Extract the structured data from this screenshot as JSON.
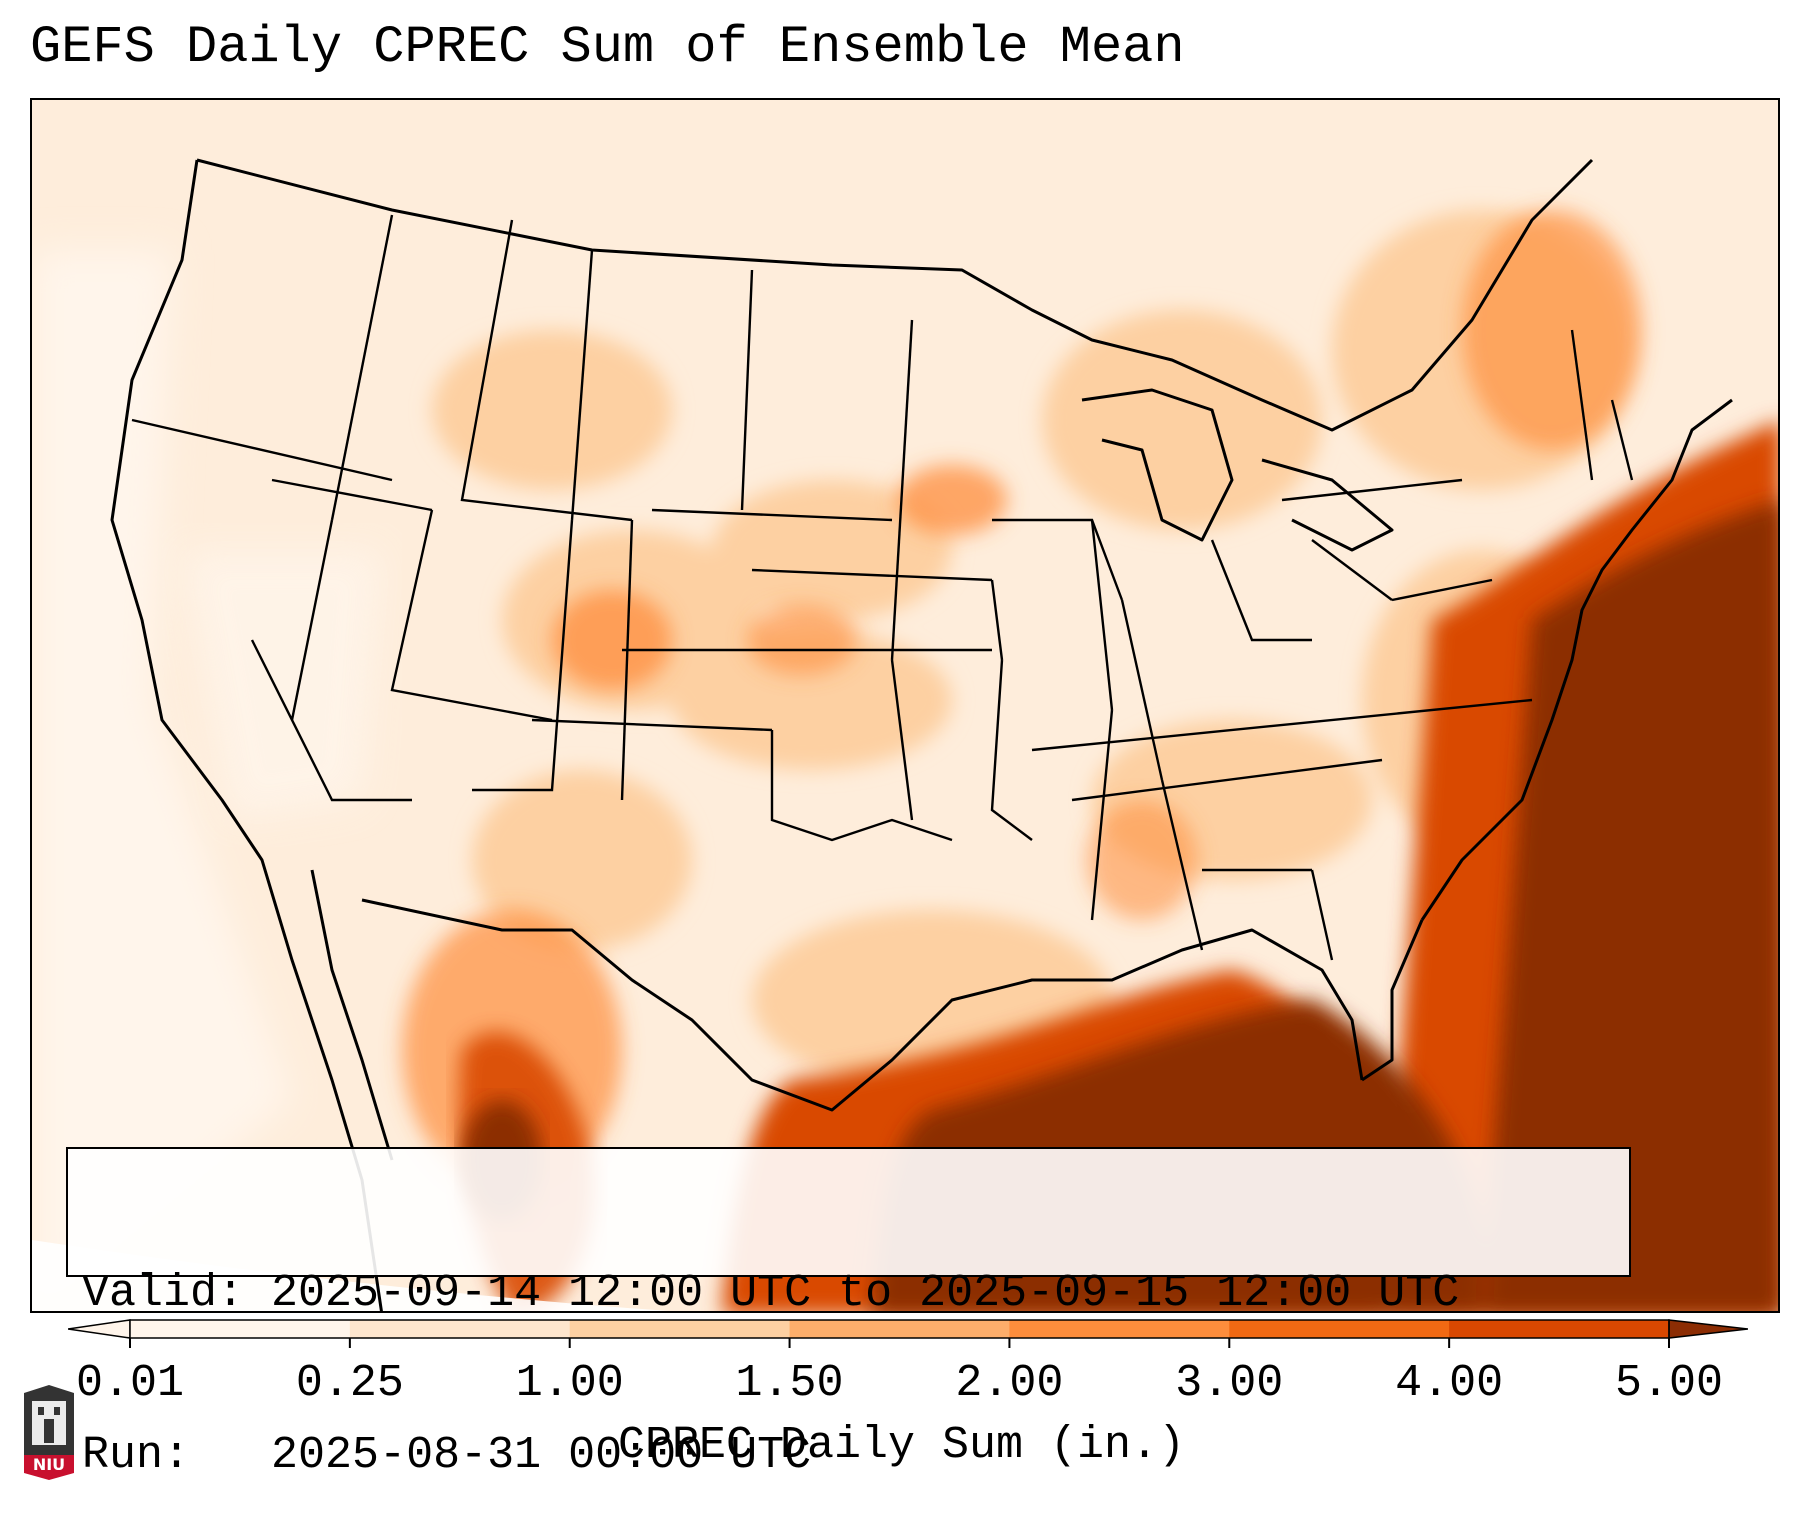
{
  "title": "GEFS Daily CPREC Sum of Ensemble Mean",
  "info": {
    "valid_label": "Valid:",
    "valid_text": "2025-09-14 12:00 UTC to 2025-09-15 12:00 UTC",
    "run_label": "Run:",
    "run_text": "2025-08-31 00:00 UTC"
  },
  "colorbar": {
    "label": "CPREC Daily Sum (in.)",
    "ticks": [
      "0.01",
      "0.25",
      "1.00",
      "1.50",
      "2.00",
      "3.00",
      "4.00",
      "5.00"
    ],
    "colors": [
      "#fff5eb",
      "#fee6ce",
      "#fdd0a2",
      "#fdae6b",
      "#fd8d3c",
      "#f16913",
      "#d94801",
      "#8c2d04"
    ],
    "extend": "both"
  },
  "logo": {
    "text": "NIU",
    "color": "#c8102e"
  },
  "map": {
    "region": "Contiguous United States",
    "field_colors": {
      "ocean_low": "#fff5eb",
      "land_low": "#fee6ce",
      "moderate": "#fdd0a2",
      "high": "#fd8d3c",
      "very_high": "#d94801",
      "extreme": "#8c2d04"
    }
  }
}
